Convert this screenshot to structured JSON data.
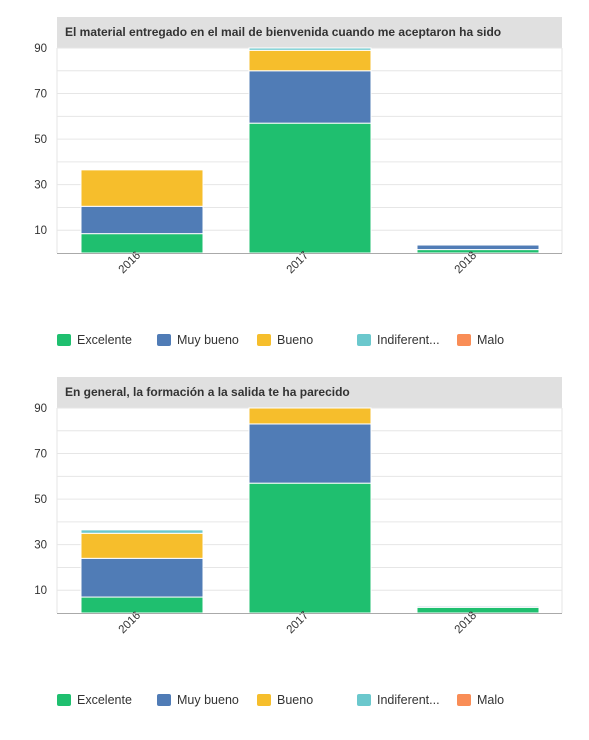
{
  "colors": {
    "Excelente": "#1fbf6f",
    "Muy bueno": "#507cb6",
    "Bueno": "#f6be2c",
    "Indiferente": "#6bc8cd",
    "Malo": "#f98d56"
  },
  "legend": [
    {
      "key": "Excelente",
      "label": "Excelente"
    },
    {
      "key": "Muy bueno",
      "label": "Muy bueno"
    },
    {
      "key": "Bueno",
      "label": "Bueno"
    },
    {
      "key": "Indiferente",
      "label": "Indiferent..."
    },
    {
      "key": "Malo",
      "label": "Malo"
    }
  ],
  "chart_data": [
    {
      "type": "bar",
      "stacked": true,
      "title": "El material entregado en el mail de bienvenida cuando me aceptaron ha sido",
      "categories": [
        "2016",
        "2017",
        "2018"
      ],
      "ylim": [
        0,
        90
      ],
      "yticks": [
        10,
        30,
        50,
        70,
        90
      ],
      "grid": true,
      "legend_position": "bottom",
      "series": [
        {
          "name": "Excelente",
          "values": [
            8.5,
            57,
            1.5
          ]
        },
        {
          "name": "Muy bueno",
          "values": [
            12,
            23,
            2
          ]
        },
        {
          "name": "Bueno",
          "values": [
            16,
            9,
            0
          ]
        },
        {
          "name": "Indiferente",
          "values": [
            0,
            1,
            0
          ]
        },
        {
          "name": "Malo",
          "values": [
            0,
            0,
            0
          ]
        }
      ]
    },
    {
      "type": "bar",
      "stacked": true,
      "title": "En general, la formación a la salida te ha parecido",
      "categories": [
        "2016",
        "2017",
        "2018"
      ],
      "ylim": [
        0,
        90
      ],
      "yticks": [
        10,
        30,
        50,
        70,
        90
      ],
      "grid": true,
      "legend_position": "bottom",
      "series": [
        {
          "name": "Excelente",
          "values": [
            7,
            57,
            2.5
          ]
        },
        {
          "name": "Muy bueno",
          "values": [
            17,
            26,
            0.5
          ]
        },
        {
          "name": "Bueno",
          "values": [
            11,
            7,
            0
          ]
        },
        {
          "name": "Indiferente",
          "values": [
            1.5,
            0,
            0
          ]
        },
        {
          "name": "Malo",
          "values": [
            0,
            0,
            0
          ]
        }
      ]
    }
  ]
}
